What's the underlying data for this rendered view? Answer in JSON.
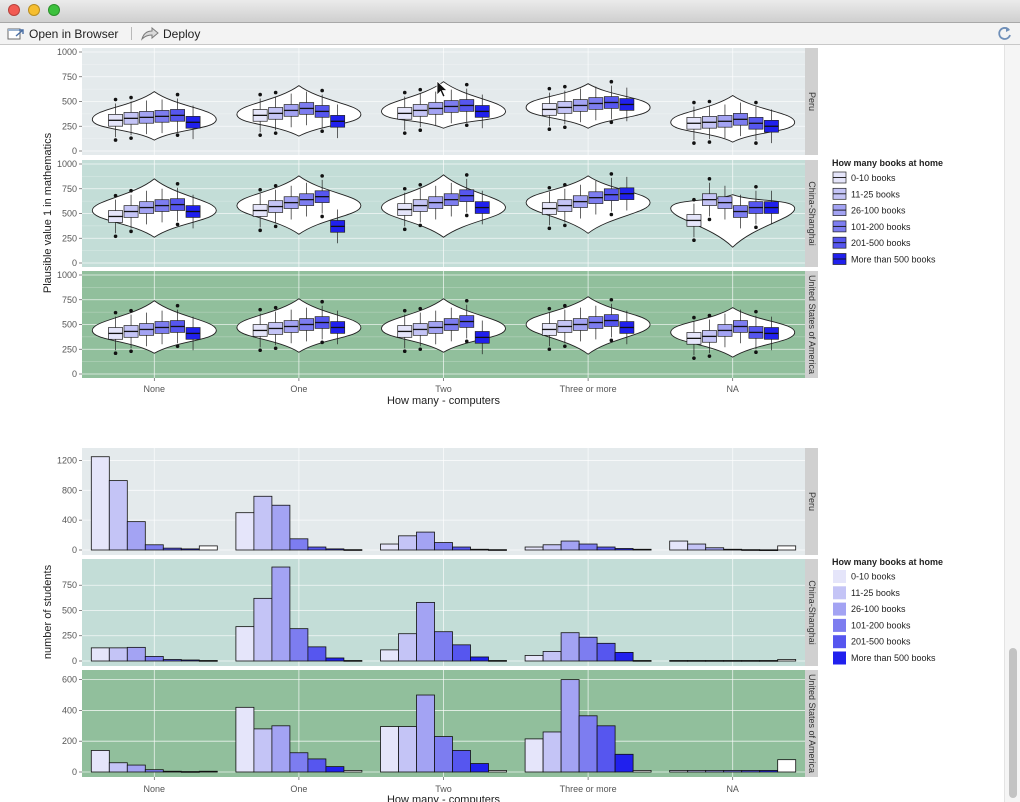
{
  "window": {
    "open_in_browser_label": "Open in Browser",
    "deploy_label": "Deploy"
  },
  "colors": {
    "strip_bg": "#d0d0d0",
    "fills": [
      "#e5e5fa",
      "#c4c4f6",
      "#a3a3f3",
      "#7d7df0",
      "#5656ef",
      "#2020ee"
    ]
  },
  "facets": [
    {
      "label": "Peru",
      "bg": "#e4eaec"
    },
    {
      "label": "China-Shanghai",
      "bg": "#c3ddd7"
    },
    {
      "label": "United States of America",
      "bg": "#91bf9c"
    }
  ],
  "x_categories": [
    "None",
    "One",
    "Two",
    "Three or more",
    "NA"
  ],
  "x_axis_title": "How many - computers",
  "legend": {
    "title": "How many books at home",
    "items": [
      "0-10 books",
      "11-25 books",
      "26-100 books",
      "101-200 books",
      "201-500 books",
      "More than 500 books"
    ]
  },
  "violin_plot": {
    "ylabel": "Plausible value 1 in mathematics",
    "ylim": [
      0,
      1000
    ],
    "yticks": [
      0,
      250,
      500,
      750,
      1000
    ]
  },
  "histogram": {
    "ylabel": "number of students",
    "panels": [
      {
        "ymax": 1300,
        "yticks": [
          0,
          400,
          800,
          1200
        ]
      },
      {
        "ymax": 960,
        "yticks": [
          0,
          250,
          500,
          750
        ]
      },
      {
        "ymax": 630,
        "yticks": [
          0,
          200,
          400,
          600
        ]
      }
    ]
  },
  "chart_data": [
    {
      "type": "box+violin",
      "ylabel": "Plausible value 1 in mathematics",
      "xlabel": "How many - computers",
      "ylim": [
        0,
        1000
      ],
      "facets": [
        "Peru",
        "China-Shanghai",
        "United States of America"
      ],
      "categories": [
        "None",
        "One",
        "Two",
        "Three or more",
        "NA"
      ],
      "series_names": [
        "0-10 books",
        "11-25 books",
        "26-100 books",
        "101-200 books",
        "201-500 books",
        "More than 500 books"
      ],
      "violin_center": [
        [
          320,
          370,
          400,
          440,
          290
        ],
        [
          530,
          580,
          560,
          610,
          550
        ],
        [
          440,
          470,
          460,
          500,
          420
        ]
      ],
      "violin_range": [
        [
          [
            110,
            600
          ],
          [
            150,
            660
          ],
          [
            230,
            700
          ],
          [
            230,
            680
          ],
          [
            90,
            560
          ]
        ],
        [
          [
            260,
            850
          ],
          [
            290,
            880
          ],
          [
            260,
            890
          ],
          [
            300,
            880
          ],
          [
            160,
            690
          ]
        ],
        [
          [
            210,
            740
          ],
          [
            220,
            760
          ],
          [
            220,
            760
          ],
          [
            200,
            780
          ],
          [
            170,
            670
          ]
        ]
      ],
      "box_median": [
        [
          [
            310,
            330,
            340,
            350,
            360,
            290
          ],
          [
            360,
            380,
            410,
            430,
            400,
            300
          ],
          [
            380,
            410,
            430,
            450,
            460,
            400
          ],
          [
            420,
            440,
            460,
            480,
            490,
            470
          ],
          [
            280,
            290,
            300,
            320,
            280,
            250
          ]
        ],
        [
          [
            470,
            520,
            560,
            580,
            590,
            520
          ],
          [
            530,
            570,
            610,
            640,
            670,
            370
          ],
          [
            540,
            580,
            610,
            640,
            680,
            560
          ],
          [
            550,
            580,
            620,
            660,
            690,
            700
          ],
          [
            430,
            640,
            610,
            520,
            560,
            560
          ]
        ],
        [
          [
            410,
            430,
            450,
            470,
            480,
            410
          ],
          [
            440,
            460,
            480,
            500,
            520,
            470
          ],
          [
            430,
            450,
            470,
            500,
            530,
            370
          ],
          [
            450,
            480,
            500,
            520,
            540,
            470
          ],
          [
            360,
            380,
            440,
            480,
            420,
            410
          ]
        ]
      ]
    },
    {
      "type": "bar",
      "ylabel": "number of students",
      "xlabel": "How many - computers",
      "facets": [
        "Peru",
        "China-Shanghai",
        "United States of America"
      ],
      "categories": [
        "None",
        "One",
        "Two",
        "Three or more",
        "NA"
      ],
      "series_names": [
        "0-10 books",
        "11-25 books",
        "26-100 books",
        "101-200 books",
        "201-500 books",
        "More than 500 books"
      ],
      "counts": [
        [
          [
            1250,
            930,
            380,
            70,
            25,
            15,
            55
          ],
          [
            500,
            720,
            600,
            150,
            40,
            15,
            5
          ],
          [
            80,
            190,
            240,
            100,
            40,
            10,
            5
          ],
          [
            40,
            70,
            120,
            80,
            40,
            20,
            10
          ],
          [
            120,
            80,
            30,
            10,
            5,
            3,
            55
          ]
        ],
        [
          [
            130,
            130,
            135,
            45,
            15,
            10,
            5
          ],
          [
            340,
            620,
            930,
            320,
            140,
            30,
            5
          ],
          [
            110,
            270,
            580,
            290,
            160,
            40,
            5
          ],
          [
            55,
            95,
            280,
            235,
            175,
            85,
            5
          ],
          [
            5,
            5,
            5,
            5,
            5,
            5,
            15
          ]
        ],
        [
          [
            140,
            60,
            45,
            15,
            5,
            3,
            5
          ],
          [
            420,
            280,
            300,
            125,
            85,
            35,
            10
          ],
          [
            295,
            295,
            500,
            230,
            140,
            55,
            10
          ],
          [
            215,
            260,
            600,
            365,
            300,
            115,
            10
          ],
          [
            10,
            10,
            10,
            10,
            10,
            10,
            80
          ]
        ]
      ]
    }
  ]
}
